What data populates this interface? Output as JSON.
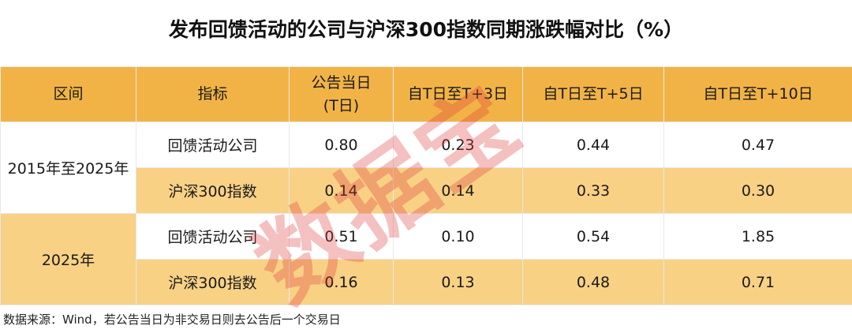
{
  "title": "发布回馈活动的公司与沪深300指数同期涨跌幅对比（%）",
  "colors": {
    "header": "#F2B346",
    "highlight_row": "#F8D185",
    "watermark": "#E13C3C"
  },
  "chart_data": {
    "type": "table",
    "title": "发布回馈活动的公司与沪深300指数同期涨跌幅对比（%）",
    "columns": [
      "区间",
      "指标",
      "公告当日\n(T日)",
      "自T日至T+3日",
      "自T日至T+5日",
      "自T日至T+10日"
    ],
    "column_lines": [
      [
        "公告当日",
        "(T日)"
      ]
    ],
    "groups": [
      {
        "period": "2015年至2025年",
        "rows": [
          {
            "metric": "回馈活动公司",
            "values": [
              "0.80",
              "0.23",
              "0.44",
              "0.47"
            ]
          },
          {
            "metric": "沪深300指数",
            "values": [
              "0.14",
              "0.14",
              "0.33",
              "0.30"
            ]
          }
        ]
      },
      {
        "period": "2025年",
        "rows": [
          {
            "metric": "回馈活动公司",
            "values": [
              "0.51",
              "0.10",
              "0.54",
              "1.85"
            ]
          },
          {
            "metric": "沪深300指数",
            "values": [
              "0.16",
              "0.13",
              "0.48",
              "0.71"
            ]
          }
        ]
      }
    ]
  },
  "header": {
    "col0": "区间",
    "col1": "指标",
    "col2_line1": "公告当日",
    "col2_line2": "(T日)",
    "col3": "自T日至T+3日",
    "col4": "自T日至T+5日",
    "col5": "自T日至T+10日"
  },
  "footer": "数据来源：Wind，若公告当日为非交易日则去公告后一个交易日",
  "watermark": "数据宝"
}
